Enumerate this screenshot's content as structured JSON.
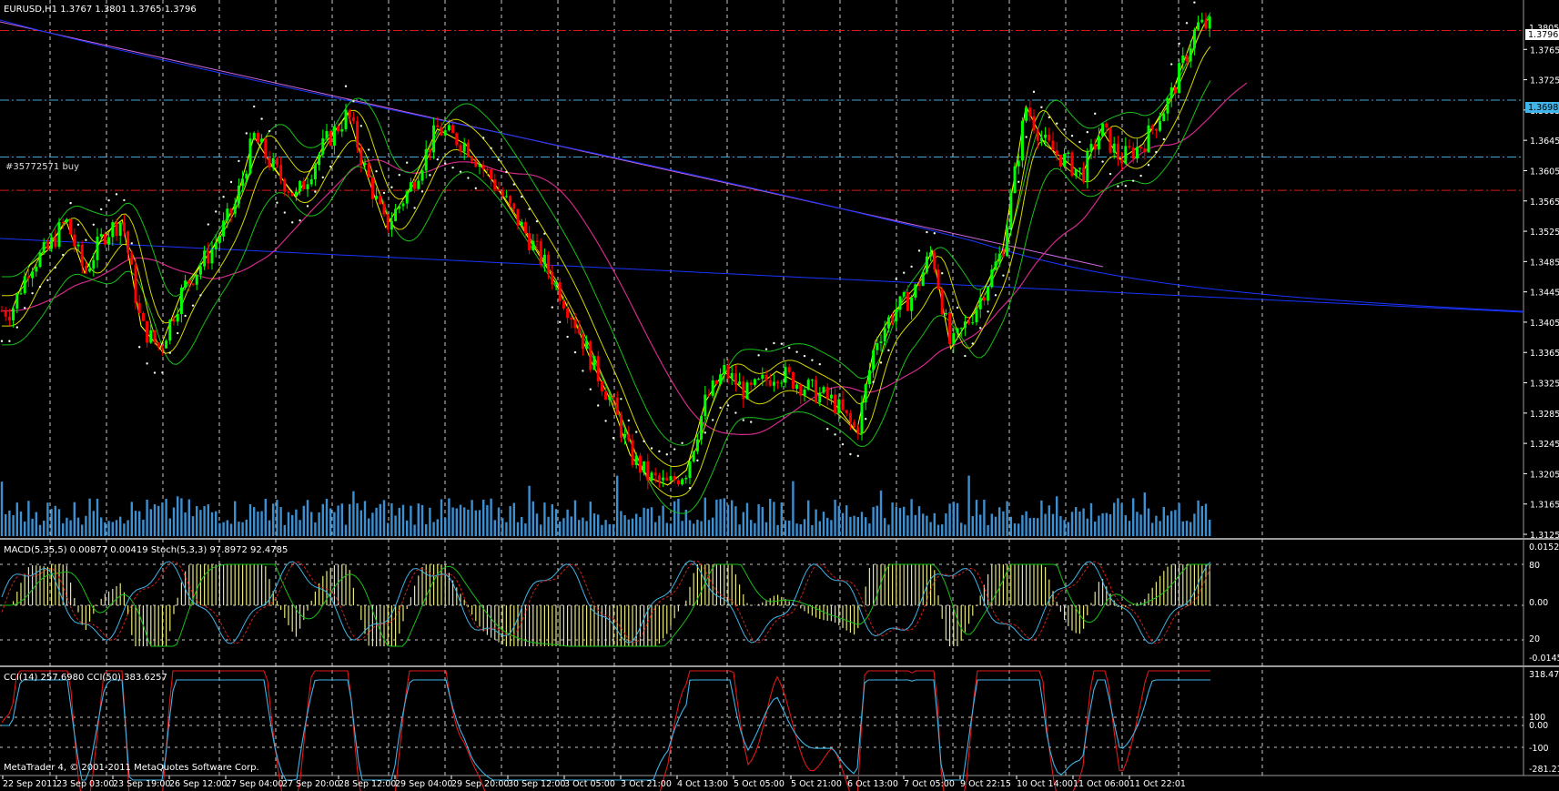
{
  "window": {
    "symbol_header": "EURUSD,H1  1.3767 1.3801 1.3765 1.3796",
    "copyright": "MetaTrader 4, © 2001-2011 MetaQuotes Software Corp."
  },
  "main_panel": {
    "order_label": "#35772571 buy",
    "current_price_tag": "1.3796",
    "line_price_tag": "1.3698",
    "top_tick": "1.3805",
    "price_ticks": [
      "1.3765",
      "1.3725",
      "1.3685",
      "1.3645",
      "1.3605",
      "1.3565",
      "1.3525",
      "1.3485",
      "1.3445",
      "1.3405",
      "1.3365",
      "1.3325",
      "1.3285",
      "1.3245",
      "1.3205",
      "1.3165",
      "1.3125"
    ]
  },
  "macd_panel": {
    "header": "MACD(5,35,5) 0.00877 0.00419  Stoch(5,3,3) 97.8972 92.4785",
    "ticks": [
      "0.0152",
      "80",
      "0.00",
      "20",
      "-0.0145"
    ]
  },
  "cci_panel": {
    "header": "CCI(14) 257.6980  CCI(50) 383.6257",
    "ticks": [
      "318.479",
      "100",
      "0.00",
      "-100",
      "-281.213"
    ]
  },
  "time_axis": {
    "labels": [
      "22 Sep 2011",
      "23 Sep 03:00",
      "23 Sep 19:00",
      "26 Sep 12:00",
      "27 Sep 04:00",
      "27 Sep 20:00",
      "28 Sep 12:00",
      "29 Sep 04:00",
      "29 Sep 20:00",
      "30 Sep 12:00",
      "3 Oct 05:00",
      "3 Oct 21:00",
      "4 Oct 13:00",
      "5 Oct 05:00",
      "5 Oct 21:00",
      "6 Oct 13:00",
      "7 Oct 05:00",
      "9 Oct 22:15",
      "10 Oct 14:00",
      "11 Oct 06:00",
      "11 Oct 22:01"
    ]
  },
  "colors": {
    "background": "#000000",
    "bull": "#00ff00",
    "bear": "#ff0000",
    "grid": "#c8c8c8",
    "volume": "#3c8fd0",
    "hline_red": "#d21a1a",
    "hline_blue": "#3fa9d8",
    "magenta": "#d02a8a",
    "green": "#18c018",
    "yellow": "#ffff00",
    "trend_blue": "#1a34ff",
    "trend_violet": "#cc66dd"
  },
  "chart_data": {
    "type": "candlestick",
    "symbol": "EURUSD",
    "timeframe": "H1",
    "last_bar": {
      "open": 1.3767,
      "high": 1.3801,
      "low": 1.3765,
      "close": 1.3796
    },
    "y_range": [
      1.3125,
      1.3805
    ],
    "anchor_points": [
      [
        "22 Sep 2011",
        1.342
      ],
      [
        "22 Sep 2011",
        1.348
      ],
      [
        "22 Sep 2011",
        1.35
      ],
      [
        "23 Sep 03:00",
        1.354
      ],
      [
        "23 Sep 03:00",
        1.347
      ],
      [
        "23 Sep 03:00",
        1.352
      ],
      [
        "23 Sep 19:00",
        1.354
      ],
      [
        "23 Sep 19:00",
        1.34
      ],
      [
        "23 Sep 19:00",
        1.337
      ],
      [
        "26 Sep 12:00",
        1.345
      ],
      [
        "26 Sep 12:00",
        1.35
      ],
      [
        "27 Sep 04:00",
        1.356
      ],
      [
        "27 Sep 04:00",
        1.365
      ],
      [
        "27 Sep 04:00",
        1.361
      ],
      [
        "27 Sep 20:00",
        1.357
      ],
      [
        "27 Sep 20:00",
        1.364
      ],
      [
        "28 Sep 12:00",
        1.368
      ],
      [
        "28 Sep 12:00",
        1.36
      ],
      [
        "28 Sep 12:00",
        1.353
      ],
      [
        "29 Sep 04:00",
        1.358
      ],
      [
        "29 Sep 04:00",
        1.366
      ],
      [
        "29 Sep 20:00",
        1.364
      ],
      [
        "29 Sep 20:00",
        1.359
      ],
      [
        "30 Sep 12:00",
        1.353
      ],
      [
        "30 Sep 12:00",
        1.347
      ],
      [
        "3 Oct 05:00",
        1.341
      ],
      [
        "3 Oct 05:00",
        1.335
      ],
      [
        "3 Oct 05:00",
        1.33
      ],
      [
        "3 Oct 21:00",
        1.323
      ],
      [
        "3 Oct 21:00",
        1.32
      ],
      [
        "3 Oct 21:00",
        1.319
      ],
      [
        "4 Oct 13:00",
        1.321
      ],
      [
        "4 Oct 13:00",
        1.33
      ],
      [
        "4 Oct 13:00",
        1.334
      ],
      [
        "5 Oct 05:00",
        1.331
      ],
      [
        "5 Oct 05:00",
        1.334
      ],
      [
        "5 Oct 21:00",
        1.332
      ],
      [
        "5 Oct 21:00",
        1.33
      ],
      [
        "6 Oct 13:00",
        1.326
      ],
      [
        "6 Oct 13:00",
        1.338
      ],
      [
        "6 Oct 13:00",
        1.342
      ],
      [
        "7 Oct 05:00",
        1.344
      ],
      [
        "7 Oct 05:00",
        1.35
      ],
      [
        "7 Oct 05:00",
        1.337
      ],
      [
        "9 Oct 22:15",
        1.342
      ],
      [
        "9 Oct 22:15",
        1.35
      ],
      [
        "10 Oct 14:00",
        1.369
      ],
      [
        "10 Oct 14:00",
        1.364
      ],
      [
        "10 Oct 14:00",
        1.362
      ],
      [
        "11 Oct 06:00",
        1.36
      ],
      [
        "11 Oct 06:00",
        1.366
      ],
      [
        "11 Oct 06:00",
        1.362
      ],
      [
        "11 Oct 22:01",
        1.364
      ],
      [
        "11 Oct 22:01",
        1.37
      ],
      [
        "11 Oct 22:01",
        1.3796
      ]
    ],
    "horizontal_lines": [
      {
        "price": 1.379,
        "style": "dash-dot",
        "color": "red"
      },
      {
        "price": 1.3698,
        "style": "dash-dot",
        "color": "blue"
      },
      {
        "price": 1.3623,
        "style": "dash-dot",
        "color": "blue"
      },
      {
        "price": 1.3579,
        "style": "dash-dot",
        "color": "red"
      }
    ],
    "macd_range": [
      -0.0145,
      0.0152
    ],
    "stoch_levels": [
      20,
      80
    ],
    "cci_range": [
      -281.213,
      318.479
    ],
    "cci_levels": [
      -100,
      0,
      100
    ],
    "grid": true
  }
}
